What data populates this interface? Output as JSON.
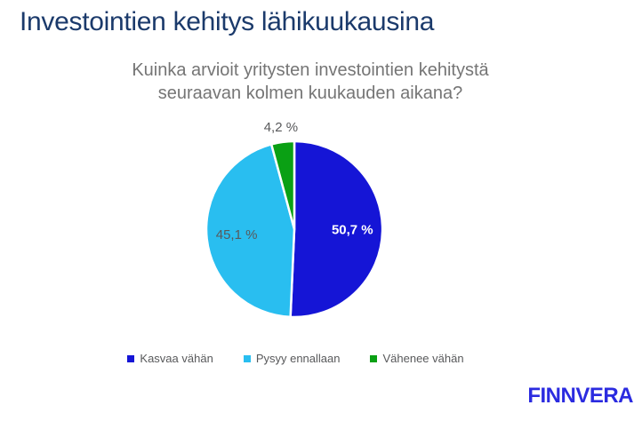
{
  "header": {
    "title": "Investointien kehitys lähikuukausina"
  },
  "chart_data": {
    "type": "pie",
    "title": "Kuinka arvioit yritysten investointien kehitystä seuraavan kolmen kuukauden aikana?",
    "title_lines": [
      "Kuinka arvioit yritysten investointien kehitystä",
      "seuraavan kolmen kuukauden aikana?"
    ],
    "categories": [
      "Kasvaa vähän",
      "Pysyy ennallaan",
      "Vähenee vähän"
    ],
    "values": [
      50.7,
      45.1,
      4.2
    ],
    "value_labels": [
      "50,7 %",
      "45,1 %",
      "4,2 %"
    ],
    "colors": [
      "#1515D6",
      "#29BEF0",
      "#0AA014"
    ],
    "value_label_colors": [
      "#FFFFFF",
      "#58595B",
      "#58595B"
    ],
    "value_label_bold": [
      true,
      false,
      false
    ],
    "start_angle_deg": 0,
    "direction": "clockwise",
    "legend_position": "bottom"
  },
  "footer": {
    "brand": "FINNVERA"
  },
  "theme": {
    "title_color": "#1B3A6B",
    "subtitle_color": "#757575",
    "legend_text_color": "#58595B",
    "brand_color": "#2B2BE0",
    "background": "#FFFFFF"
  }
}
